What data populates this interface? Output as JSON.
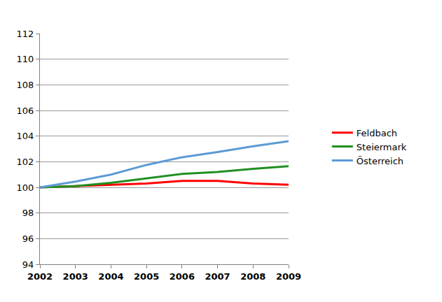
{
  "chart_data": {
    "type": "line",
    "x": [
      2002,
      2003,
      2004,
      2005,
      2006,
      2007,
      2008,
      2009
    ],
    "series": [
      {
        "name": "Feldbach",
        "color": "#ff0000",
        "values": [
          100,
          100.1,
          100.2,
          100.3,
          100.5,
          100.5,
          100.3,
          100.2
        ]
      },
      {
        "name": "Steiermark",
        "color": "#209020",
        "values": [
          100,
          100.1,
          100.35,
          100.7,
          101.05,
          101.2,
          101.45,
          101.65
        ]
      },
      {
        "name": "Österreich",
        "color": "#5b9bd5",
        "values": [
          100,
          100.45,
          101.0,
          101.75,
          102.35,
          102.75,
          103.2,
          103.6
        ]
      }
    ],
    "xlim": [
      2002,
      2009
    ],
    "xticks": [
      2002,
      2003,
      2004,
      2005,
      2006,
      2007,
      2008,
      2009
    ],
    "ylim": [
      94,
      112
    ],
    "yticks": [
      94,
      96,
      98,
      100,
      102,
      104,
      106,
      108,
      110,
      112
    ],
    "grid": true,
    "legend": "right"
  }
}
